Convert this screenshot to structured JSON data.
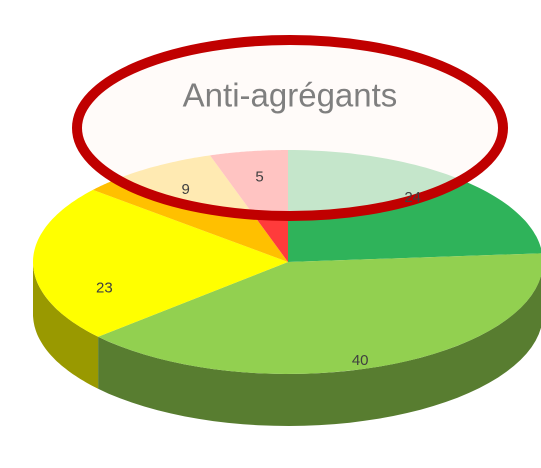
{
  "chart_data": {
    "type": "pie",
    "title": "Anti-agrégants",
    "values": [
      24,
      40,
      23,
      9,
      5
    ],
    "colors": [
      "#2fb35a",
      "#92d050",
      "#ffff00",
      "#ffc000",
      "#ff3b3b"
    ]
  }
}
